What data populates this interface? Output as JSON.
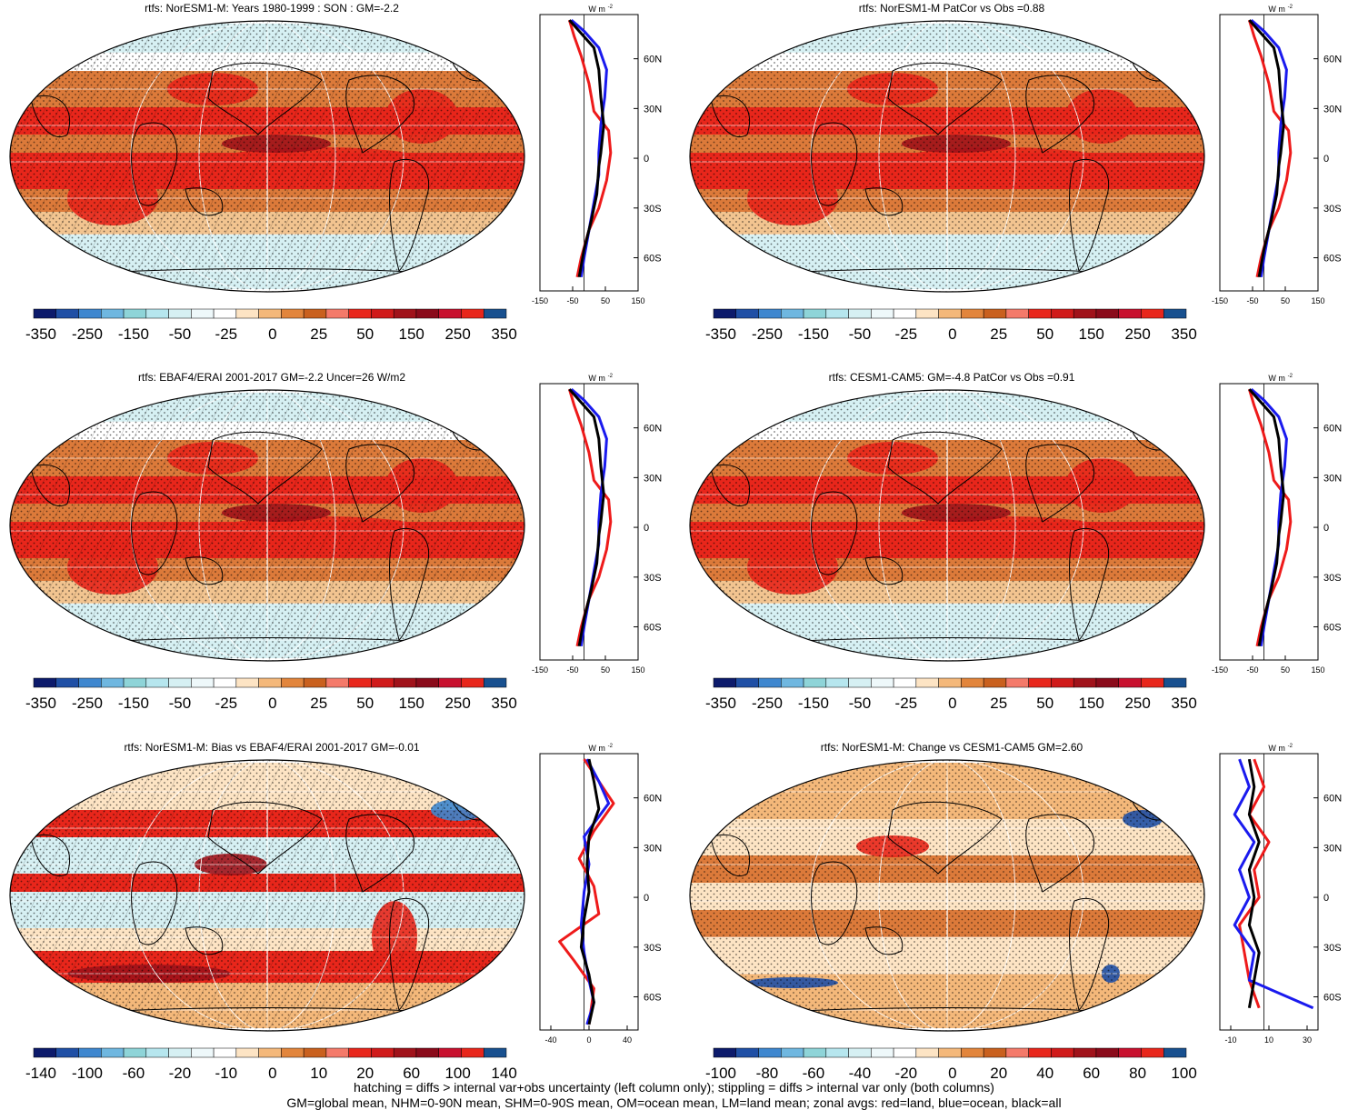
{
  "colors": {
    "ocean_pale": "#d6f0f3",
    "red": "#e8261b",
    "dark_red": "#a0121a",
    "orange": "#dc7a3a",
    "light_orange": "#f2c490",
    "blue_line": "#1a1aee",
    "red_line": "#ee1a1a",
    "black_line": "#000000",
    "colorbar": [
      "#0c1a6b",
      "#1f4fa5",
      "#3e87cf",
      "#6fb7e0",
      "#8ed4d8",
      "#b6e6ee",
      "#d6f0f3",
      "#eef8fa",
      "#ffffff",
      "#fde4c4",
      "#f4b87a",
      "#e2853c",
      "#c9601e",
      "#f47a6a",
      "#e8261b",
      "#d01a1a",
      "#a0121a",
      "#8a0a1a",
      "#c8102e",
      "#e8261b",
      "#18508f"
    ]
  },
  "panels": [
    {
      "id": "top-left",
      "title": "rtfs: NorESM1-M: Years 1980-1999 : SON : GM=-2.2",
      "colorbar_labels": [
        "-350",
        "-250",
        "-150",
        "-50",
        "-25",
        "0",
        "25",
        "50",
        "150",
        "250",
        "350"
      ],
      "zonal": {
        "units": "W m",
        "units_exp": "-2",
        "lat_labels": [
          "60N",
          "30N",
          "0",
          "30S",
          "60S"
        ],
        "x_labels": [
          "-150",
          "-50",
          "50",
          "150"
        ]
      }
    },
    {
      "id": "top-right",
      "title": "rtfs: NorESM1-M PatCor vs Obs =0.88",
      "colorbar_labels": [
        "-350",
        "-250",
        "-150",
        "-50",
        "-25",
        "0",
        "25",
        "50",
        "150",
        "250",
        "350"
      ],
      "zonal": {
        "units": "W m",
        "units_exp": "-2",
        "lat_labels": [
          "60N",
          "30N",
          "0",
          "30S",
          "60S"
        ],
        "x_labels": [
          "-150",
          "-50",
          "50",
          "150"
        ]
      }
    },
    {
      "id": "middle-left",
      "title": "rtfs: EBAF4/ERAI 2001-2017 GM=-2.2 Uncer=26 W/m2",
      "colorbar_labels": [
        "-350",
        "-250",
        "-150",
        "-50",
        "-25",
        "0",
        "25",
        "50",
        "150",
        "250",
        "350"
      ],
      "zonal": {
        "units": "W m",
        "units_exp": "-2",
        "lat_labels": [
          "60N",
          "30N",
          "0",
          "30S",
          "60S"
        ],
        "x_labels": [
          "-150",
          "-50",
          "50",
          "150"
        ]
      }
    },
    {
      "id": "middle-right",
      "title": "rtfs: CESM1-CAM5: GM=-4.8 PatCor vs Obs =0.91",
      "colorbar_labels": [
        "-350",
        "-250",
        "-150",
        "-50",
        "-25",
        "0",
        "25",
        "50",
        "150",
        "250",
        "350"
      ],
      "zonal": {
        "units": "W m",
        "units_exp": "-2",
        "lat_labels": [
          "60N",
          "30N",
          "0",
          "30S",
          "60S"
        ],
        "x_labels": [
          "-150",
          "-50",
          "50",
          "150"
        ]
      }
    },
    {
      "id": "bottom-left",
      "title": "rtfs: NorESM1-M: Bias vs EBAF4/ERAI 2001-2017  GM=-0.01",
      "colorbar_labels": [
        "-140",
        "-100",
        "-60",
        "-20",
        "-10",
        "0",
        "10",
        "20",
        "60",
        "100",
        "140"
      ],
      "zonal": {
        "units": "W m",
        "units_exp": "-2",
        "lat_labels": [
          "60N",
          "30N",
          "0",
          "30S",
          "60S"
        ],
        "x_labels": [
          "-40",
          "0",
          "40"
        ]
      }
    },
    {
      "id": "bottom-right",
      "title": "rtfs: NorESM1-M: Change vs CESM1-CAM5 GM=2.60",
      "colorbar_labels": [
        "-100",
        "-80",
        "-60",
        "-40",
        "-20",
        "0",
        "20",
        "40",
        "60",
        "80",
        "100"
      ],
      "zonal": {
        "units": "W m",
        "units_exp": "-2",
        "lat_labels": [
          "60N",
          "30N",
          "0",
          "30S",
          "60S"
        ],
        "x_labels": [
          "-10",
          "10",
          "30"
        ]
      }
    }
  ],
  "footnote": {
    "line1": "hatching = diffs > internal var+obs uncertainty (left column only); stippling = diffs > internal var only (both columns)",
    "line2": "GM=global mean, NHM=0-90N mean, SHM=0-90S mean, OM=ocean mean, LM=land mean; zonal avgs: red=land, blue=ocean, black=all"
  }
}
